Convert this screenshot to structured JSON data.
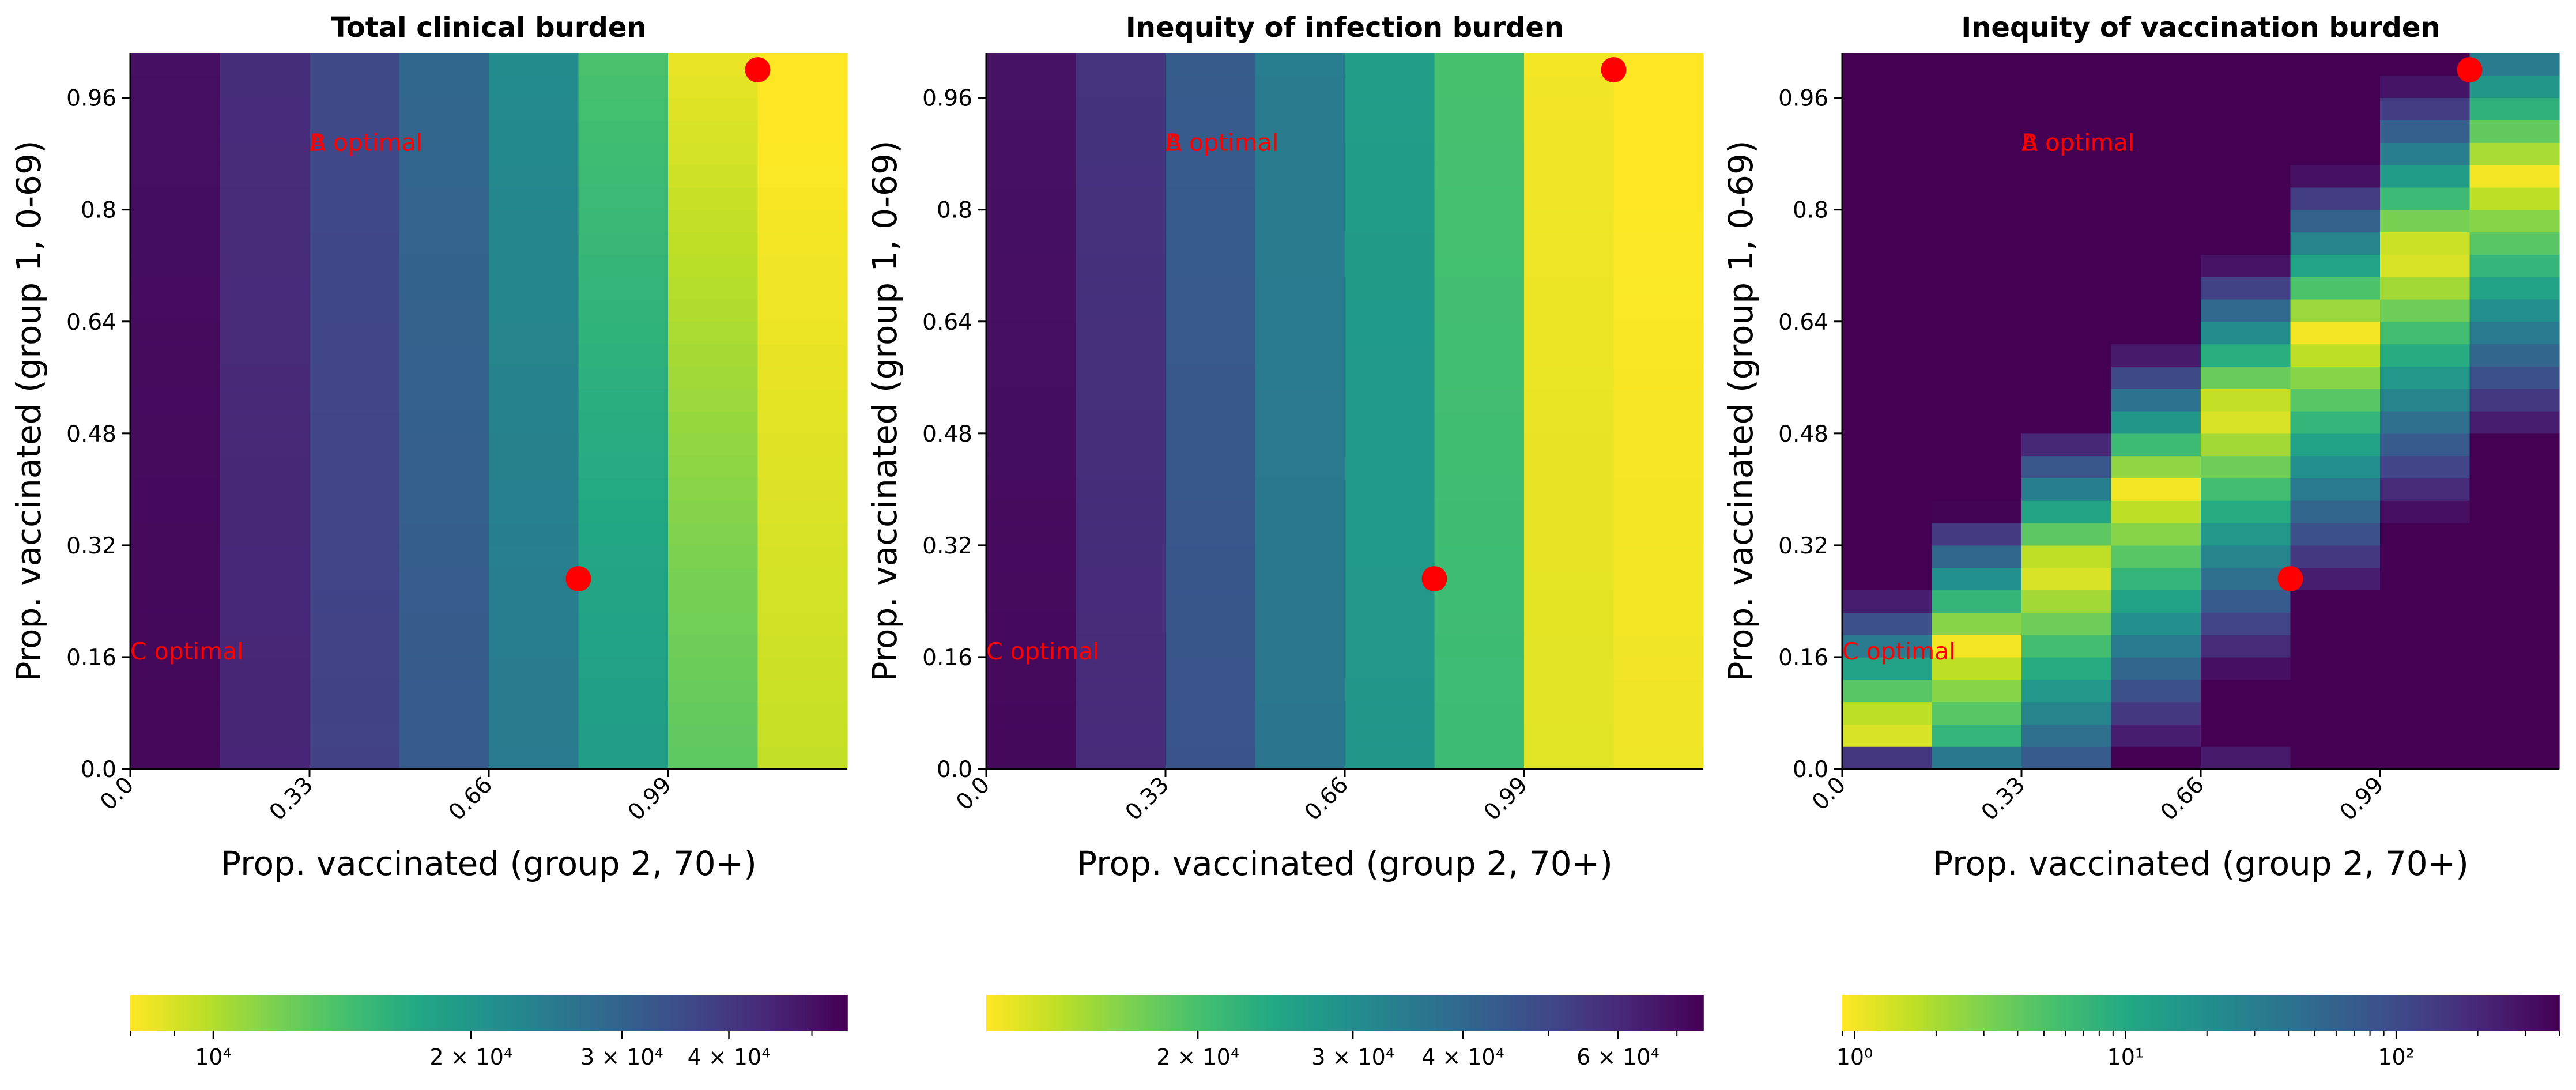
{
  "figure": {
    "panels": [
      {
        "title": "Total clinical burden"
      },
      {
        "title": "Inequity of infection burden"
      },
      {
        "title": "Inequity of vaccination burden"
      }
    ],
    "xlabel": "Prop. vaccinated (group 2, 70+)",
    "ylabel": "Prop. vaccinated (group 1, 0-69)",
    "x_ticks": [
      "0.0",
      "0.33",
      "0.66",
      "0.99"
    ],
    "y_ticks": [
      "0.0",
      "0.16",
      "0.32",
      "0.48",
      "0.64",
      "0.8",
      "0.96"
    ]
  },
  "chart_data": [
    {
      "type": "heatmap",
      "title": "Total clinical burden",
      "xlabel": "Prop. vaccinated (group 2, 70+)",
      "ylabel": "Prop. vaccinated (group 1, 0-69)",
      "colormap": "viridis_r",
      "color_scale": "log",
      "xlim": [
        0,
        1.32
      ],
      "ylim": [
        0,
        1.024
      ],
      "x_cells": 8,
      "y_cells": 32,
      "x_tick_values": [
        0,
        0.33,
        0.66,
        0.99
      ],
      "y_tick_values": [
        0,
        0.16,
        0.32,
        0.48,
        0.64,
        0.8,
        0.96
      ],
      "column_values_bottom": [
        53000,
        45000,
        38000,
        32000,
        25000,
        19000,
        13000,
        9500
      ],
      "column_values_top": [
        51000,
        43000,
        36000,
        29000,
        22000,
        14000,
        8500,
        7800
      ],
      "markers": [
        {
          "x": 0.825,
          "y": 0.272
        },
        {
          "x": 1.155,
          "y": 1.0
        }
      ],
      "annotations": [
        {
          "text": "A optimal",
          "x": 0.33,
          "y": 0.896
        },
        {
          "text": "B optimal",
          "x": 0.33,
          "y": 0.896
        },
        {
          "text": "C optimal",
          "x": 0.0,
          "y": 0.168
        }
      ],
      "colorbar": {
        "orientation": "horizontal",
        "range": [
          8000,
          55000
        ],
        "ticks": [
          {
            "label": "10⁴",
            "value": 10000
          },
          {
            "label": "2 × 10⁴",
            "value": 20000
          },
          {
            "label": "3 × 10⁴",
            "value": 30000
          },
          {
            "label": "4 × 10⁴",
            "value": 40000
          }
        ]
      }
    },
    {
      "type": "heatmap",
      "title": "Inequity of infection burden",
      "xlabel": "Prop. vaccinated (group 2, 70+)",
      "ylabel": "Prop. vaccinated (group 1, 0-69)",
      "colormap": "viridis_r",
      "color_scale": "log",
      "xlim": [
        0,
        1.32
      ],
      "ylim": [
        0,
        1.024
      ],
      "x_cells": 8,
      "y_cells": 32,
      "x_tick_values": [
        0,
        0.33,
        0.66,
        0.99
      ],
      "y_tick_values": [
        0,
        0.16,
        0.32,
        0.48,
        0.64,
        0.8,
        0.96
      ],
      "column_values": [
        72000,
        60000,
        46000,
        36000,
        28000,
        21000,
        12500,
        12000
      ],
      "markers": [
        {
          "x": 0.825,
          "y": 0.272
        },
        {
          "x": 1.155,
          "y": 1.0
        }
      ],
      "annotations": [
        {
          "text": "A optimal",
          "x": 0.33,
          "y": 0.896
        },
        {
          "text": "B optimal",
          "x": 0.33,
          "y": 0.896
        },
        {
          "text": "C optimal",
          "x": 0.0,
          "y": 0.168
        }
      ],
      "colorbar": {
        "orientation": "horizontal",
        "range": [
          11500,
          75000
        ],
        "ticks": [
          {
            "label": "2 × 10⁴",
            "value": 20000
          },
          {
            "label": "3 × 10⁴",
            "value": 30000
          },
          {
            "label": "4 × 10⁴",
            "value": 40000
          },
          {
            "label": "6 × 10⁴",
            "value": 60000
          }
        ]
      }
    },
    {
      "type": "heatmap",
      "title": "Inequity of vaccination burden",
      "xlabel": "Prop. vaccinated (group 2, 70+)",
      "ylabel": "Prop. vaccinated (group 1, 0-69)",
      "colormap": "viridis_r",
      "color_scale": "log",
      "xlim": [
        0,
        1.32
      ],
      "ylim": [
        0,
        1.024
      ],
      "x_cells": 8,
      "y_cells": 32,
      "x_tick_values": [
        0,
        0.33,
        0.66,
        0.99
      ],
      "y_tick_values": [
        0,
        0.16,
        0.32,
        0.48,
        0.64,
        0.8,
        0.96
      ],
      "minimum_valley": {
        "description": "value minimum per column at y ≈ 0.04·column index",
        "min_value": 1,
        "max_value": 400
      },
      "markers": [
        {
          "x": 0.825,
          "y": 0.272
        },
        {
          "x": 1.155,
          "y": 1.0
        }
      ],
      "annotations": [
        {
          "text": "A optimal",
          "x": 0.33,
          "y": 0.896
        },
        {
          "text": "B optimal",
          "x": 0.33,
          "y": 0.896
        },
        {
          "text": "C optimal",
          "x": 0.0,
          "y": 0.168
        }
      ],
      "colorbar": {
        "orientation": "horizontal",
        "range": [
          0.9,
          400
        ],
        "ticks": [
          {
            "label": "10⁰",
            "value": 1
          },
          {
            "label": "10¹",
            "value": 10
          },
          {
            "label": "10²",
            "value": 100
          }
        ]
      }
    }
  ],
  "colors": {
    "marker": "#ff0000",
    "annotation": "#ff0000",
    "text": "#000000"
  }
}
